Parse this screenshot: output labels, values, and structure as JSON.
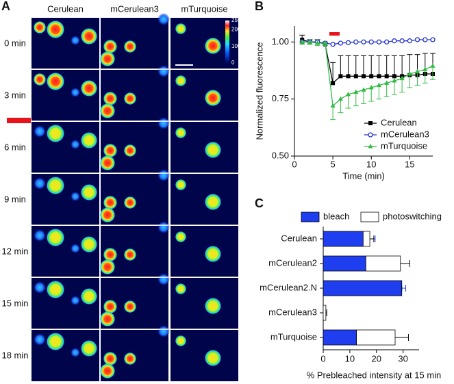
{
  "panel_a": {
    "label": "A",
    "columns": [
      "Cerulean",
      "mCerulean3",
      "mTurquoise"
    ],
    "rows": [
      "0 min",
      "3 min",
      "6 min",
      "9 min",
      "12 min",
      "15 min",
      "18 min"
    ],
    "colorbar_ticks": [
      255,
      200,
      100,
      0
    ]
  },
  "chart_data": [
    {
      "type": "line",
      "label": "B",
      "xlabel": "Time (min)",
      "ylabel": "Normalized fluorescence",
      "x": [
        1,
        2,
        3,
        4,
        5,
        6,
        7,
        8,
        9,
        10,
        11,
        12,
        13,
        14,
        15,
        16,
        17,
        18
      ],
      "xlim": [
        0,
        18
      ],
      "xticks": [
        0,
        5,
        10,
        15
      ],
      "ylim": [
        0.5,
        1.07
      ],
      "yticks": [
        {
          "value": 0.5,
          "label": "0.50"
        },
        {
          "value": 0.75,
          "label": "0.75"
        },
        {
          "value": 1.0,
          "label": "1.00"
        }
      ],
      "legend": "lower right",
      "series": [
        {
          "name": "Cerulean",
          "color": "#000000",
          "marker": "square",
          "error_side": "up",
          "values": [
            1.01,
            1.0,
            1.0,
            0.99,
            0.82,
            0.85,
            0.85,
            0.85,
            0.85,
            0.85,
            0.85,
            0.85,
            0.85,
            0.85,
            0.855,
            0.855,
            0.86,
            0.86
          ],
          "errors": [
            0.02,
            0.01,
            0.01,
            0.01,
            0.09,
            0.09,
            0.09,
            0.09,
            0.09,
            0.09,
            0.09,
            0.09,
            0.09,
            0.09,
            0.09,
            0.09,
            0.09,
            0.09
          ]
        },
        {
          "name": "mCerulean3",
          "color": "#2233cc",
          "marker": "circle",
          "values": [
            1.0,
            1.0,
            1.0,
            0.995,
            0.99,
            0.995,
            0.997,
            1.0,
            1.0,
            1.0,
            1.0,
            1.0,
            1.005,
            1.005,
            1.005,
            1.01,
            1.01,
            1.01
          ]
        },
        {
          "name": "mTurquoise",
          "color": "#33bb44",
          "marker": "triangle",
          "error_side": "down",
          "values": [
            1.0,
            1.0,
            0.995,
            0.995,
            0.72,
            0.75,
            0.77,
            0.78,
            0.79,
            0.8,
            0.81,
            0.82,
            0.83,
            0.84,
            0.86,
            0.87,
            0.88,
            0.895
          ],
          "errors": [
            0.01,
            0.01,
            0.01,
            0.01,
            0.06,
            0.06,
            0.06,
            0.06,
            0.06,
            0.06,
            0.06,
            0.06,
            0.06,
            0.06,
            0.06,
            0.06,
            0.06,
            0.06
          ]
        }
      ]
    },
    {
      "type": "bar",
      "label": "C",
      "orientation": "horizontal",
      "stacked": true,
      "xlabel": "% Prebleached intensity at 15 min",
      "legend": "top",
      "categories": [
        "Cerulean",
        "mCerulean2",
        "mCerulean2.N",
        "mCerulean3",
        "mTurquoise"
      ],
      "xlim": [
        0,
        36
      ],
      "xticks": [
        0,
        10,
        20,
        30
      ],
      "series": [
        {
          "name": "bleach",
          "color": "#1f3ef0",
          "values": [
            15,
            16,
            29.5,
            0,
            12.5
          ],
          "errors": [
            4.5,
            5.5,
            1.5,
            0,
            6
          ]
        },
        {
          "name": "photoswitching",
          "color": "#ffffff",
          "values": [
            2.5,
            13,
            0,
            1,
            14.5
          ],
          "errors": [
            1.5,
            3.5,
            0,
            0.3,
            5
          ]
        }
      ]
    }
  ]
}
